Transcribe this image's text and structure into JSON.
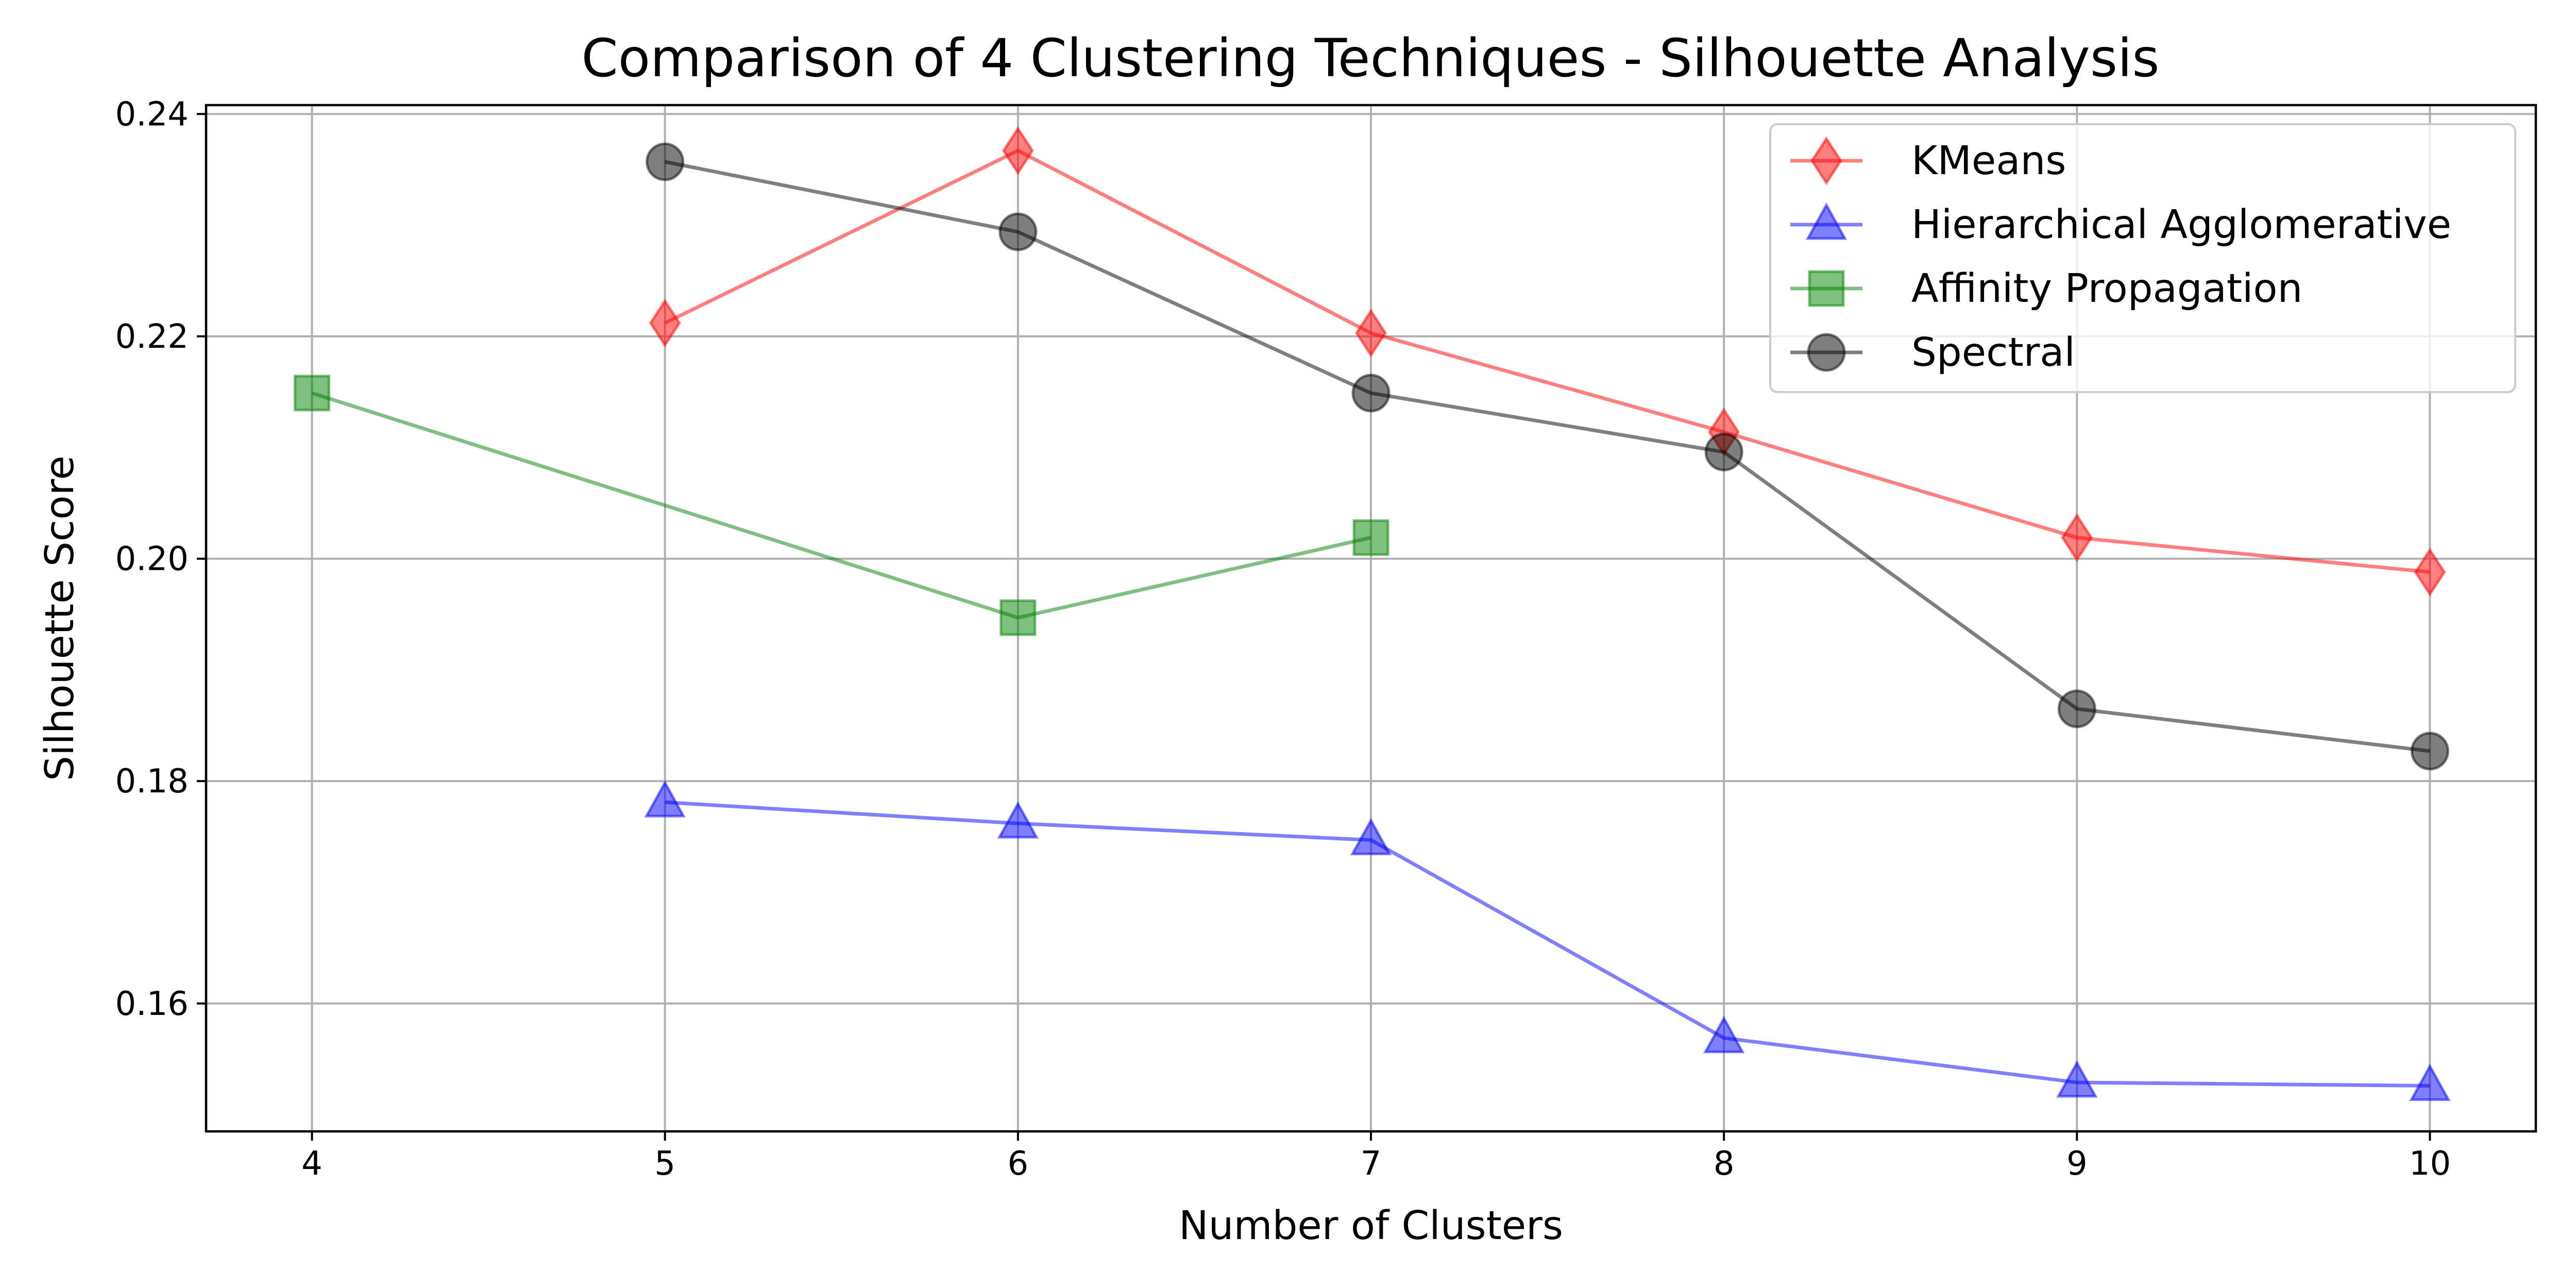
{
  "chart_data": {
    "type": "line",
    "title": "Comparison of 4 Clustering Techniques - Silhouette Analysis",
    "xlabel": "Number of Clusters",
    "ylabel": "Silhouette Score",
    "xlim": [
      3.7,
      10.3
    ],
    "ylim": [
      0.1485,
      0.2408
    ],
    "xticks": [
      4,
      5,
      6,
      7,
      8,
      9,
      10
    ],
    "xtick_labels": [
      "4",
      "5",
      "6",
      "7",
      "8",
      "9",
      "10"
    ],
    "yticks": [
      0.16,
      0.18,
      0.2,
      0.22,
      0.24
    ],
    "ytick_labels": [
      "0.16",
      "0.18",
      "0.20",
      "0.22",
      "0.24"
    ],
    "grid": true,
    "legend_position": "top-right",
    "series": [
      {
        "name": "KMeans",
        "color": "#ff0000",
        "marker": "thin-diamond",
        "x": [
          5,
          6,
          7,
          8,
          9,
          10
        ],
        "y": [
          0.2212,
          0.2367,
          0.2203,
          0.2114,
          0.2019,
          0.1988
        ]
      },
      {
        "name": "Hierarchical Agglomerative",
        "color": "#0000ff",
        "marker": "triangle",
        "x": [
          5,
          6,
          7,
          8,
          9,
          10
        ],
        "y": [
          0.1781,
          0.1762,
          0.1747,
          0.1569,
          0.1529,
          0.1526
        ]
      },
      {
        "name": "Affinity Propagation",
        "color": "#008000",
        "marker": "square",
        "x": [
          4,
          6,
          7
        ],
        "y": [
          0.2149,
          0.1947,
          0.2019
        ]
      },
      {
        "name": "Spectral",
        "color": "#000000",
        "marker": "circle",
        "x": [
          5,
          6,
          7,
          8,
          9,
          10
        ],
        "y": [
          0.2357,
          0.2294,
          0.2149,
          0.2096,
          0.1865,
          0.1827
        ]
      }
    ]
  }
}
